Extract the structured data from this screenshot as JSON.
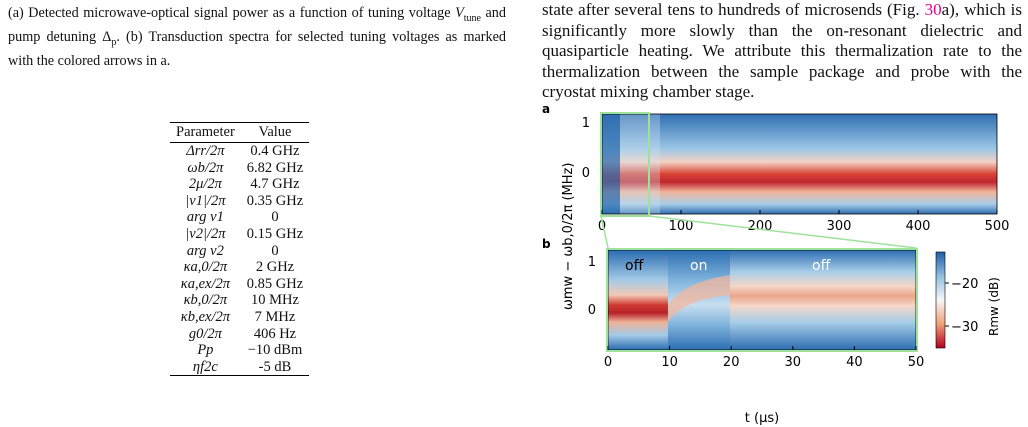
{
  "caption": {
    "part1": "(a) Detected microwave-optical signal power as a function of tuning voltage ",
    "vtune": "V",
    "vtune_sub": "tune",
    "part2": " and pump detuning ",
    "delta": "Δ",
    "delta_sub": "p",
    "part3": ". (b) Transduction spectra for selected tuning voltages as marked with the colored arrows in a."
  },
  "paragraph": {
    "line1": "state after several tens to hundreds of microsends (Fig. ",
    "ref": "30",
    "line1b": "a),",
    "rest": "which is significantly more slowly than the on-resonant dielectric and quasiparticle heating. We attribute this thermalization rate to the thermalization between the sample package and probe with the cryostat mixing chamber stage."
  },
  "table": {
    "headers": [
      "Parameter",
      "Value"
    ],
    "rows": [
      [
        "Δrr/2π",
        "0.4 GHz"
      ],
      [
        "ωb/2π",
        "6.82 GHz"
      ],
      [
        "2μ/2π",
        "4.7 GHz"
      ],
      [
        "|ν1|/2π",
        "0.35 GHz"
      ],
      [
        "arg ν1",
        "0"
      ],
      [
        "|ν2|/2π",
        "0.15 GHz"
      ],
      [
        "arg ν2",
        "0"
      ],
      [
        "κa,0/2π",
        "2 GHz"
      ],
      [
        "κa,ex/2π",
        "0.85 GHz"
      ],
      [
        "κb,0/2π",
        "10 MHz"
      ],
      [
        "κb,ex/2π",
        "7 MHz"
      ],
      [
        "g0/2π",
        "406 Hz"
      ],
      [
        "Pp",
        "−10 dBm"
      ],
      [
        "ηf2c",
        "-5 dB"
      ]
    ]
  },
  "figure": {
    "panel_a": "a",
    "panel_b": "b",
    "ylabel": "ω",
    "ylabel_full": "ωmw − ωb,0/2π (MHz)",
    "xlabel": "t (μs)",
    "colorbar_label": "Rmw (dB)",
    "colorbar_ticks": [
      "−20",
      "−30"
    ],
    "a_xticks": [
      "0",
      "100",
      "200",
      "300",
      "400",
      "500"
    ],
    "a_yticks": [
      "1",
      "0"
    ],
    "b_xticks": [
      "0",
      "10",
      "20",
      "30",
      "40",
      "50"
    ],
    "b_yticks": [
      "1",
      "0"
    ],
    "state_labels": [
      "off",
      "on",
      "off"
    ],
    "colors": {
      "red": "#c0262f",
      "blue": "#2a6bb0",
      "white": "#f3f5f7",
      "green": "#9ee29a"
    }
  }
}
